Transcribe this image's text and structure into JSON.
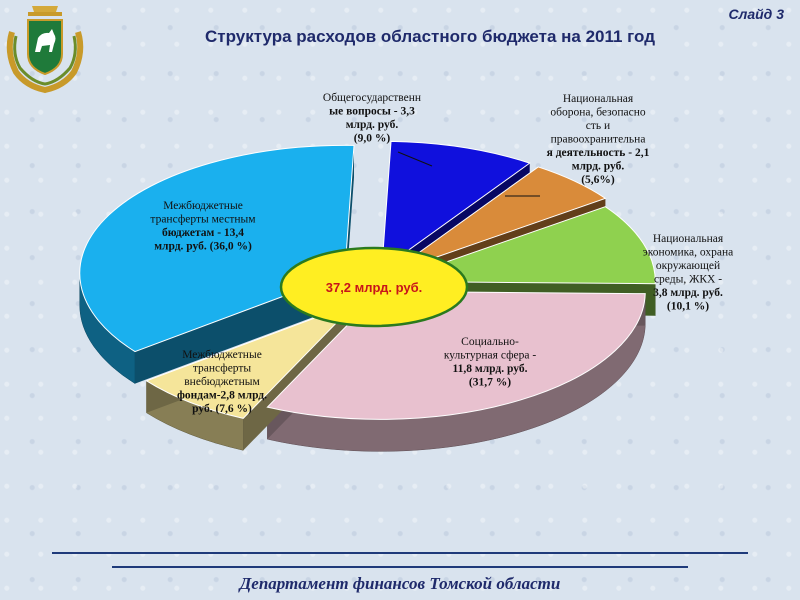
{
  "slide_label": "Слайд 3",
  "footer": "Департамент финансов Томской области",
  "colors": {
    "title": "#1f2a6b",
    "center_fill": "#ffee22",
    "center_stroke": "#2a7a1e",
    "center_text": "#c8141a"
  },
  "chart_data": {
    "type": "pie",
    "title": "Структура расходов областного бюджета на 2011 год",
    "center_label": "37,2 млрд. руб.",
    "unit": "млрд. руб.",
    "slices": [
      {
        "name": "Общегосударственные вопросы",
        "value": 3.3,
        "percent": 9.0,
        "color": "#1010dd",
        "label_lines": [
          "Общегосударственн",
          "ые вопросы - 3,3",
          "млрд. руб.",
          "(9,0 %)"
        ]
      },
      {
        "name": "Национальная оборона, безопасность и правоохранительная деятельность",
        "value": 2.1,
        "percent": 5.6,
        "color": "#d98b3a",
        "label_lines": [
          "Национальная",
          "оборона, безопасно",
          "сть и",
          "правоохранительна",
          "я деятельность - 2,1",
          "млрд. руб.",
          "(5,6%)"
        ]
      },
      {
        "name": "Национальная экономика, охрана окружающей среды, ЖКХ",
        "value": 3.8,
        "percent": 10.1,
        "color": "#8fd14f",
        "label_lines": [
          "Национальная",
          "экономика, охрана",
          "окружающей",
          "среды, ЖКХ -",
          "3,8 млрд. руб.",
          "(10,1 %)"
        ]
      },
      {
        "name": "Социально-культурная сфера",
        "value": 11.8,
        "percent": 31.7,
        "color": "#e8c1cf",
        "label_lines": [
          "Социально-",
          "культурная сфера -",
          "11,8 млрд. руб.",
          "(31,7 %)"
        ]
      },
      {
        "name": "Межбюджетные трансферты внебюджетным фондам",
        "value": 2.8,
        "percent": 7.6,
        "color": "#f5e59a",
        "label_lines": [
          "Межбюджетные",
          "трансферты",
          "внебюджетным",
          "фондам-2,8 млрд.",
          "руб. (7,6 %)"
        ]
      },
      {
        "name": "Межбюджетные трансферты местным бюджетам",
        "value": 13.4,
        "percent": 36.0,
        "color": "#1ab0ee",
        "label_lines": [
          "Межбюджетные",
          "трансферты местным",
          "бюджетам - 13,4",
          "млрд. руб. (36,0 %)"
        ]
      }
    ]
  }
}
